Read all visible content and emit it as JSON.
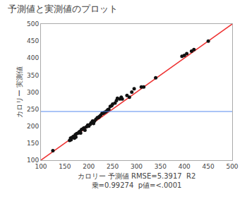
{
  "chart_data": {
    "type": "scatter",
    "title": "予測値と実測値のプロット",
    "xlabel": "カロリー 予測値 RMSE=5.3917  R2\n乗=0.99274  p値=<.0001",
    "ylabel": "カロリー 実測値",
    "x": [
      125,
      160,
      162,
      163,
      165,
      168,
      170,
      172,
      173,
      175,
      178,
      180,
      182,
      183,
      185,
      188,
      190,
      192,
      195,
      198,
      200,
      203,
      205,
      208,
      210,
      212,
      215,
      218,
      220,
      222,
      225,
      228,
      230,
      232,
      235,
      238,
      240,
      242,
      245,
      248,
      250,
      255,
      258,
      260,
      265,
      268,
      270,
      280,
      285,
      290,
      295,
      310,
      315,
      340,
      395,
      400,
      405,
      415,
      420,
      450
    ],
    "values": [
      128,
      158,
      165,
      160,
      167,
      170,
      165,
      175,
      168,
      178,
      180,
      183,
      185,
      180,
      190,
      192,
      195,
      188,
      198,
      203,
      200,
      205,
      210,
      215,
      208,
      215,
      220,
      225,
      225,
      228,
      232,
      238,
      238,
      240,
      242,
      245,
      248,
      250,
      258,
      260,
      265,
      268,
      275,
      282,
      280,
      285,
      280,
      290,
      285,
      300,
      310,
      315,
      315,
      342,
      405,
      408,
      413,
      420,
      425,
      450
    ],
    "color": "#111111",
    "reference_line": {
      "x": [
        100,
        500
      ],
      "y": [
        100,
        500
      ],
      "color": "#EE3333"
    },
    "mean_line": {
      "y": 243,
      "color": "#5588EE"
    },
    "xlim": [
      100,
      500
    ],
    "ylim": [
      100,
      500
    ],
    "xticks": [
      100,
      150,
      200,
      250,
      300,
      350,
      400,
      450,
      500
    ],
    "yticks": [
      100,
      150,
      200,
      250,
      300,
      350,
      400,
      450,
      500
    ],
    "grid": false
  }
}
